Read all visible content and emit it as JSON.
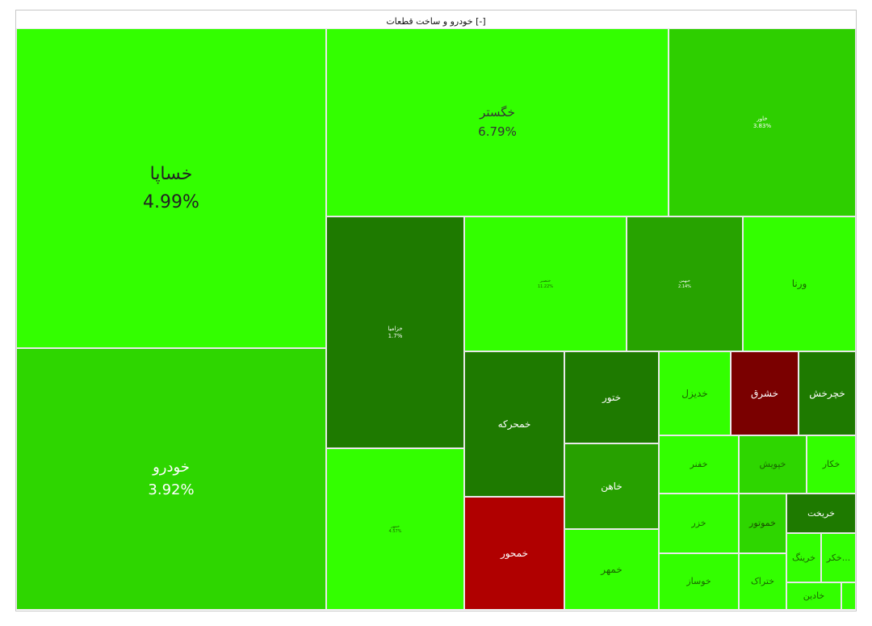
{
  "chart_data": {
    "type": "treemap",
    "title": "خودرو و ساخت قطعات [-]",
    "tiles": [
      {
        "name": "خساپا",
        "change": "4.99%",
        "color": "#33ff00",
        "text": "#222222"
      },
      {
        "name": "خودرو",
        "change": "3.92%",
        "color": "#2ed600",
        "text": "#ffffff"
      },
      {
        "name": "خگستر",
        "change": "6.79%",
        "color": "#33ff00",
        "text": "#333333"
      },
      {
        "name": "خاور",
        "change": "3.83%",
        "color": "#2ecf00",
        "text": "#ffffff"
      },
      {
        "name": "خزامیا",
        "change": "1.7%",
        "color": "#1e7a00",
        "text": "#ffffff"
      },
      {
        "name": "خمهر",
        "change": "4.57%",
        "color": "#33ff00",
        "text": "#1a6600"
      },
      {
        "name": "خنصیر",
        "change": "11.22%",
        "color": "#33ff00",
        "text": "#1a6600"
      },
      {
        "name": "خبهمن",
        "change": "2.14%",
        "color": "#27a300",
        "text": "#ffffff"
      },
      {
        "name": "ورنا",
        "change": "",
        "color": "#33ff00",
        "text": "#1a6600"
      },
      {
        "name": "خمحرکه",
        "change": "",
        "color": "#1e7a00",
        "text": "#ffffff"
      },
      {
        "name": "خمحور",
        "change": "",
        "color": "#b00000",
        "text": "#ffffff"
      },
      {
        "name": "ختور",
        "change": "",
        "color": "#1e7a00",
        "text": "#ffffff"
      },
      {
        "name": "خاهن",
        "change": "",
        "color": "#27a000",
        "text": "#ffffff"
      },
      {
        "name": "خمهر",
        "change": "",
        "color": "#33ff00",
        "text": "#1a6600"
      },
      {
        "name": "خدیزل",
        "change": "",
        "color": "#33ff00",
        "text": "#1a6600"
      },
      {
        "name": "خشرق",
        "change": "",
        "color": "#7a0000",
        "text": "#ffffff"
      },
      {
        "name": "خچرخش",
        "change": "",
        "color": "#1e7a00",
        "text": "#ffffff"
      },
      {
        "name": "خفنر",
        "change": "",
        "color": "#33ff00",
        "text": "#1a6600"
      },
      {
        "name": "خپویش",
        "change": "",
        "color": "#2ed600",
        "text": "#1a6600"
      },
      {
        "name": "خکار",
        "change": "",
        "color": "#33ff00",
        "text": "#1a6600"
      },
      {
        "name": "خزر",
        "change": "",
        "color": "#33ff00",
        "text": "#1a6600"
      },
      {
        "name": "خموتور",
        "change": "",
        "color": "#2ed600",
        "text": "#1a4d00"
      },
      {
        "name": "خریخت",
        "change": "",
        "color": "#1e7a00",
        "text": "#ffffff"
      },
      {
        "name": "خوساز",
        "change": "",
        "color": "#33ff00",
        "text": "#1a6600"
      },
      {
        "name": "ختراک",
        "change": "",
        "color": "#33ff00",
        "text": "#1a6600"
      },
      {
        "name": "خرینگ",
        "change": "",
        "color": "#33ff00",
        "text": "#1a6600"
      },
      {
        "name": "خکر...",
        "change": "",
        "color": "#33ff00",
        "text": "#1a6600"
      },
      {
        "name": "خادین",
        "change": "",
        "color": "#33ff00",
        "text": "#1a6600"
      },
      {
        "name": "",
        "change": "",
        "color": "#33ff00",
        "text": "#1a6600"
      }
    ]
  }
}
